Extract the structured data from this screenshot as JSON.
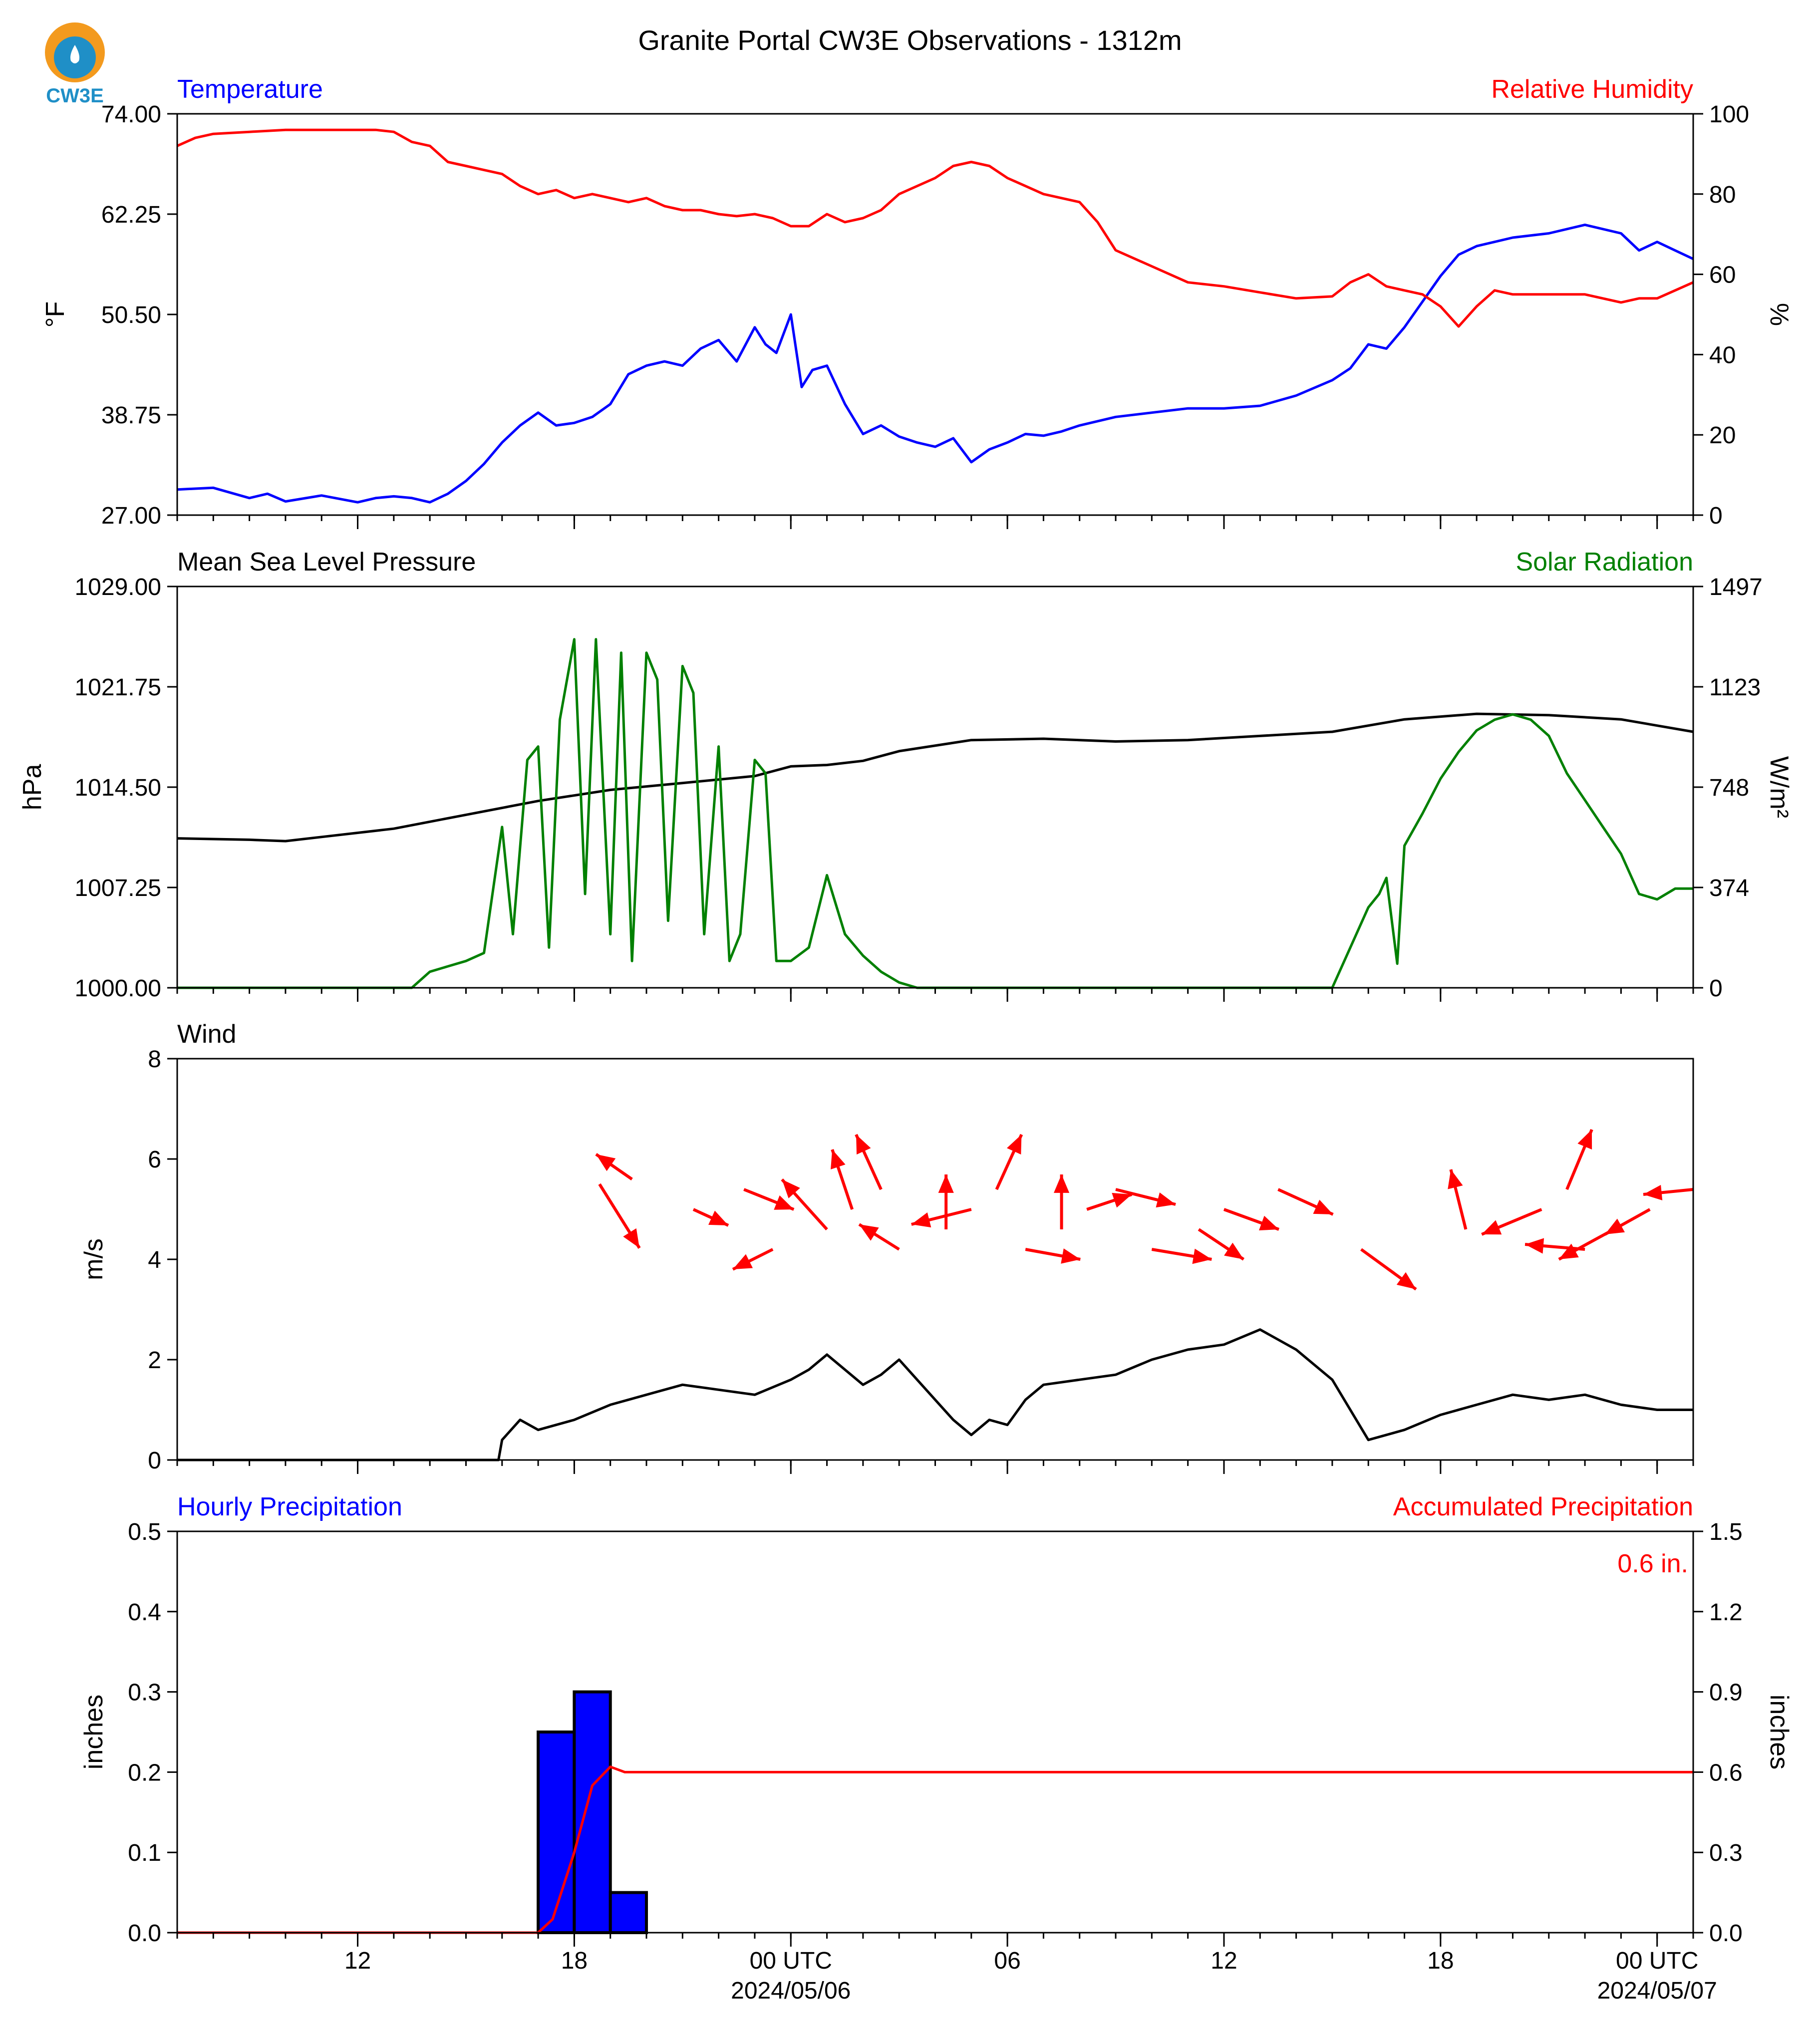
{
  "title": "Granite Portal CW3E Observations - 1312m",
  "logo": {
    "text": "CW3E",
    "colors": [
      "#f39a1e",
      "#1f8fc7"
    ]
  },
  "colors": {
    "blue": "#0000ff",
    "red": "#ff0000",
    "green": "#008000",
    "black": "#000000"
  },
  "x_axis": {
    "range_hours": [
      -2,
      40
    ],
    "ticks": [
      {
        "h": 3,
        "label": "12"
      },
      {
        "h": 9,
        "label": "18"
      },
      {
        "h": 15,
        "label": "00 UTC",
        "date": "2024/05/06"
      },
      {
        "h": 21,
        "label": "06"
      },
      {
        "h": 27,
        "label": "12"
      },
      {
        "h": 33,
        "label": "18"
      },
      {
        "h": 39,
        "label": "00 UTC",
        "date": "2024/05/07"
      }
    ],
    "minor_step_hours": 1
  },
  "chart_data": [
    {
      "type": "line",
      "panel": "temperature",
      "left_title": "Temperature",
      "right_title": "Relative Humidity",
      "ylabel_left": "°F",
      "ylabel_right": "%",
      "ylim_left": [
        27.0,
        74.0
      ],
      "ylim_right": [
        0,
        100
      ],
      "yticks_left": [
        "27.00",
        "38.75",
        "50.50",
        "62.25",
        "74.00"
      ],
      "yticks_right": [
        "0",
        "20",
        "40",
        "60",
        "80",
        "100"
      ],
      "series": [
        {
          "axis": "left",
          "color": "#0000ff",
          "x": [
            -2,
            -1,
            0,
            0.5,
            1,
            2,
            3,
            3.5,
            4,
            4.5,
            5,
            5.5,
            6,
            6.5,
            7,
            7.5,
            8,
            8.5,
            9,
            9.5,
            10,
            10.5,
            11,
            11.5,
            12,
            12.5,
            13,
            13.5,
            14,
            14.3,
            14.6,
            15,
            15.3,
            15.6,
            16,
            16.5,
            17,
            17.5,
            18,
            18.5,
            19,
            19.5,
            20,
            20.5,
            21,
            21.5,
            22,
            22.5,
            23,
            24,
            25,
            26,
            27,
            28,
            29,
            30,
            30.5,
            31,
            31.5,
            32,
            32.5,
            33,
            33.5,
            34,
            34.5,
            35,
            36,
            37,
            38,
            38.5,
            39,
            39.5,
            40
          ],
          "y": [
            30,
            30.2,
            29,
            29.5,
            28.6,
            29.3,
            28.5,
            29,
            29.2,
            29,
            28.5,
            29.5,
            31,
            33,
            35.5,
            37.5,
            39,
            37.5,
            37.8,
            38.5,
            40,
            43.5,
            44.5,
            45,
            44.5,
            46.5,
            47.5,
            45,
            49,
            47,
            46,
            50.5,
            42,
            44,
            44.5,
            40,
            36.5,
            37.5,
            36.2,
            35.5,
            35,
            36,
            33.2,
            34.7,
            35.5,
            36.5,
            36.3,
            36.8,
            37.5,
            38.5,
            39,
            39.5,
            39.5,
            39.8,
            41,
            42.8,
            44.2,
            47,
            46.5,
            49,
            52,
            55,
            57.5,
            58.5,
            59,
            59.5,
            60,
            61,
            60,
            58,
            59,
            58,
            57
          ]
        },
        {
          "axis": "right",
          "color": "#ff0000",
          "x": [
            -2,
            -1.5,
            -1,
            0,
            1,
            2,
            3,
            3.5,
            4,
            4.5,
            5,
            5.5,
            6,
            6.5,
            7,
            7.5,
            8,
            8.5,
            9,
            9.5,
            10,
            10.5,
            11,
            11.5,
            12,
            12.5,
            13,
            13.5,
            14,
            14.5,
            15,
            15.5,
            16,
            16.5,
            17,
            17.5,
            18,
            19,
            19.5,
            20,
            20.5,
            21,
            21.5,
            22,
            23,
            23.5,
            24,
            25,
            26,
            27,
            28,
            29,
            30,
            30.5,
            31,
            31.5,
            32,
            32.5,
            33,
            33.5,
            34,
            34.5,
            35,
            35.5,
            36,
            37,
            38,
            38.5,
            39,
            39.5,
            40
          ],
          "y": [
            92,
            94,
            95,
            95.5,
            96,
            96,
            96,
            96,
            95.5,
            93,
            92,
            88,
            87,
            86,
            85,
            82,
            80,
            81,
            79,
            80,
            79,
            78,
            79,
            77,
            76,
            76,
            75,
            74.5,
            75,
            74,
            72,
            72,
            75,
            73,
            74,
            76,
            80,
            84,
            87,
            88,
            87,
            84,
            82,
            80,
            78,
            73,
            66,
            62,
            58,
            57,
            55.5,
            54,
            54.5,
            58,
            60,
            57,
            56,
            55,
            52,
            47,
            52,
            56,
            55,
            55,
            55,
            55,
            53,
            54,
            54,
            56,
            58
          ]
        },
        {
          "axis": "right",
          "color": "#ff0000",
          "note": ""
        }
      ]
    },
    {
      "type": "line",
      "panel": "pressure",
      "left_title": "Mean Sea Level Pressure",
      "right_title": "Solar Radiation",
      "ylabel_left": "hPa",
      "ylabel_right": "W/m²",
      "ylim_left": [
        1000.0,
        1029.0
      ],
      "ylim_right": [
        0,
        1497
      ],
      "yticks_left": [
        "1000.00",
        "1007.25",
        "1014.50",
        "1021.75",
        "1029.00"
      ],
      "yticks_right": [
        "0",
        "374",
        "748",
        "1123",
        "1497"
      ],
      "series": [
        {
          "axis": "left",
          "color": "#000000",
          "x": [
            -2,
            0,
            1,
            2,
            4,
            6,
            8,
            10,
            12,
            14,
            15,
            16,
            17,
            18,
            20,
            22,
            24,
            26,
            28,
            30,
            32,
            34,
            36,
            38,
            40
          ],
          "y": [
            1010.8,
            1010.7,
            1010.6,
            1010.9,
            1011.5,
            1012.5,
            1013.5,
            1014.3,
            1014.8,
            1015.3,
            1016,
            1016.1,
            1016.4,
            1017.1,
            1017.9,
            1018,
            1017.8,
            1017.9,
            1018.2,
            1018.5,
            1019.4,
            1019.8,
            1019.7,
            1019.4,
            1018.5
          ]
        },
        {
          "axis": "right",
          "color": "#008000",
          "x": [
            -2,
            4.5,
            5,
            5.5,
            6,
            6.5,
            7,
            7.3,
            7.7,
            8,
            8.3,
            8.6,
            9,
            9.3,
            9.6,
            10,
            10.3,
            10.6,
            11,
            11.3,
            11.6,
            12,
            12.3,
            12.6,
            13,
            13.3,
            13.6,
            14,
            14.3,
            14.6,
            15,
            15.5,
            16,
            16.5,
            17,
            17.5,
            18,
            18.5,
            19,
            20,
            25,
            30,
            30.5,
            31,
            31.3,
            31.5,
            31.8,
            32,
            32.5,
            33,
            33.5,
            34,
            34.5,
            35,
            35.5,
            36,
            36.5,
            37,
            37.5,
            38,
            38.5,
            39,
            39.5,
            40
          ],
          "y": [
            0,
            0,
            60,
            80,
            100,
            130,
            600,
            200,
            850,
            900,
            150,
            1000,
            1300,
            350,
            1300,
            200,
            1250,
            100,
            1250,
            1150,
            250,
            1200,
            1100,
            200,
            900,
            100,
            200,
            850,
            800,
            100,
            100,
            150,
            420,
            200,
            120,
            60,
            20,
            0,
            0,
            0,
            0,
            0,
            150,
            300,
            350,
            410,
            90,
            530,
            650,
            780,
            880,
            960,
            1000,
            1020,
            1000,
            940,
            800,
            700,
            600,
            500,
            350,
            330,
            370,
            370
          ]
        }
      ]
    },
    {
      "type": "line",
      "panel": "wind",
      "left_title": "Wind",
      "ylabel_left": "m/s",
      "ylim_left": [
        0,
        8
      ],
      "yticks_left": [
        "0",
        "2",
        "4",
        "6",
        "8"
      ],
      "series": [
        {
          "axis": "left",
          "color": "#000000",
          "x": [
            -2,
            6.9,
            7,
            7.5,
            8,
            9,
            10,
            11,
            12,
            13,
            14,
            15,
            15.5,
            16,
            16.5,
            17,
            17.5,
            18,
            18.5,
            19,
            19.5,
            20,
            20.5,
            21,
            21.5,
            22,
            23,
            24,
            25,
            26,
            27,
            28,
            29,
            30,
            31,
            32,
            33,
            34,
            35,
            36,
            37,
            38,
            39,
            40
          ],
          "y": [
            0,
            0,
            0.4,
            0.8,
            0.6,
            0.8,
            1.1,
            1.3,
            1.5,
            1.4,
            1.3,
            1.6,
            1.8,
            2.1,
            1.8,
            1.5,
            1.7,
            2,
            1.6,
            1.2,
            0.8,
            0.5,
            0.8,
            0.7,
            1.2,
            1.5,
            1.6,
            1.7,
            2.0,
            2.2,
            2.3,
            2.6,
            2.2,
            1.6,
            0.4,
            0.6,
            0.9,
            1.1,
            1.3,
            1.2,
            1.3,
            1.1,
            1.0,
            1.0
          ]
        }
      ],
      "arrows": [
        {
          "x": 9.7,
          "y": 5.3,
          "dx": 40,
          "dy": 64
        },
        {
          "x": 10.6,
          "y": 5.0,
          "dx": -36,
          "dy": -25
        },
        {
          "x": 12.3,
          "y": 4.0,
          "dx": 35,
          "dy": 16
        },
        {
          "x": 13.7,
          "y": 4.0,
          "dx": 50,
          "dy": 20
        },
        {
          "x": 14.5,
          "y": 4.0,
          "dx": -40,
          "dy": 20
        },
        {
          "x": 16.0,
          "y": 4.0,
          "dx": -45,
          "dy": -50
        },
        {
          "x": 16.7,
          "y": 4.0,
          "dx": -20,
          "dy": -60
        },
        {
          "x": 17.5,
          "y": 4.0,
          "dx": -25,
          "dy": -55
        },
        {
          "x": 18.0,
          "y": 4.0,
          "dx": -40,
          "dy": -25
        },
        {
          "x": 19.3,
          "y": 4.0,
          "dx": 0,
          "dy": -55
        },
        {
          "x": 20.0,
          "y": 4.0,
          "dx": -60,
          "dy": 15
        },
        {
          "x": 20.7,
          "y": 4.0,
          "dx": 25,
          "dy": -55
        },
        {
          "x": 21.5,
          "y": 4.0,
          "dx": 55,
          "dy": 10
        },
        {
          "x": 22.5,
          "y": 4.0,
          "dx": 0,
          "dy": -55
        },
        {
          "x": 23.2,
          "y": 4.0,
          "dx": 45,
          "dy": -15
        },
        {
          "x": 24.0,
          "y": 4.0,
          "dx": 60,
          "dy": 15
        },
        {
          "x": 25.0,
          "y": 4.0,
          "dx": 60,
          "dy": 10
        },
        {
          "x": 26.3,
          "y": 4.0,
          "dx": 45,
          "dy": 30
        },
        {
          "x": 27.0,
          "y": 4.0,
          "dx": 55,
          "dy": 20
        },
        {
          "x": 28.5,
          "y": 4.0,
          "dx": 55,
          "dy": 25
        },
        {
          "x": 30.8,
          "y": 4.0,
          "dx": 55,
          "dy": 40
        },
        {
          "x": 33.7,
          "y": 4.0,
          "dx": -15,
          "dy": -60
        },
        {
          "x": 35.8,
          "y": 4.0,
          "dx": -60,
          "dy": 25
        },
        {
          "x": 36.5,
          "y": 4.0,
          "dx": 25,
          "dy": -60
        },
        {
          "x": 37.0,
          "y": 4.0,
          "dx": -60,
          "dy": -5
        },
        {
          "x": 37.8,
          "y": 4.0,
          "dx": -55,
          "dy": 30
        },
        {
          "x": 38.8,
          "y": 4.0,
          "dx": -45,
          "dy": 25
        },
        {
          "x": 40.0,
          "y": 4.0,
          "dx": -50,
          "dy": 5
        }
      ]
    },
    {
      "type": "bar",
      "panel": "precipitation",
      "left_title": "Hourly Precipitation",
      "right_title": "Accumulated Precipitation",
      "annotation": "0.6 in.",
      "ylabel_left": "inches",
      "ylabel_right": "inches",
      "ylim_left": [
        0.0,
        0.5
      ],
      "ylim_right": [
        0.0,
        1.5
      ],
      "yticks_left": [
        "0.0",
        "0.1",
        "0.2",
        "0.3",
        "0.4",
        "0.5"
      ],
      "yticks_right": [
        "0.0",
        "0.3",
        "0.6",
        "0.9",
        "1.2",
        "1.5"
      ],
      "bars": [
        {
          "x0": 8,
          "x1": 9,
          "value": 0.25
        },
        {
          "x0": 9,
          "x1": 10,
          "value": 0.3
        },
        {
          "x0": 10,
          "x1": 11,
          "value": 0.05
        }
      ],
      "bar_color": "#0000ff",
      "series": [
        {
          "axis": "right",
          "color": "#ff0000",
          "x": [
            -2,
            8,
            8.4,
            9,
            9.5,
            10,
            10.4,
            40
          ],
          "y": [
            0,
            0,
            0.05,
            0.3,
            0.55,
            0.62,
            0.6,
            0.6
          ]
        }
      ]
    }
  ]
}
